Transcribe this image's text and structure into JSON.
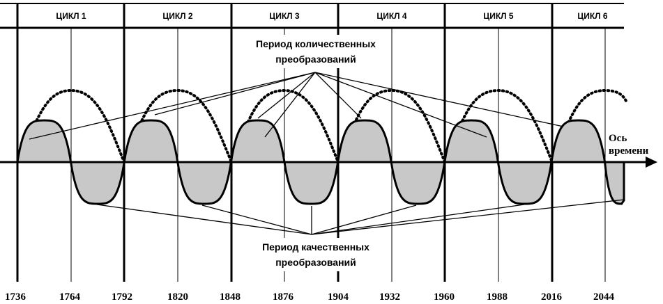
{
  "cycles": [
    "ЦИКЛ 1",
    "ЦИКЛ 2",
    "ЦИКЛ 3",
    "ЦИКЛ 4",
    "ЦИКЛ 5",
    "ЦИКЛ 6"
  ],
  "quantitative_caption": [
    "Период количественных",
    "преобразований"
  ],
  "qualitative_caption": [
    "Период качественных",
    "преобразований"
  ],
  "axis_label": [
    "Ось",
    "времени"
  ],
  "years": [
    "1736",
    "1764",
    "1792",
    "1820",
    "1848",
    "1876",
    "1904",
    "1932",
    "1960",
    "1988",
    "2016",
    "2044"
  ],
  "colors": {
    "stroke": "#000000",
    "fill": "#c8c8c8"
  }
}
